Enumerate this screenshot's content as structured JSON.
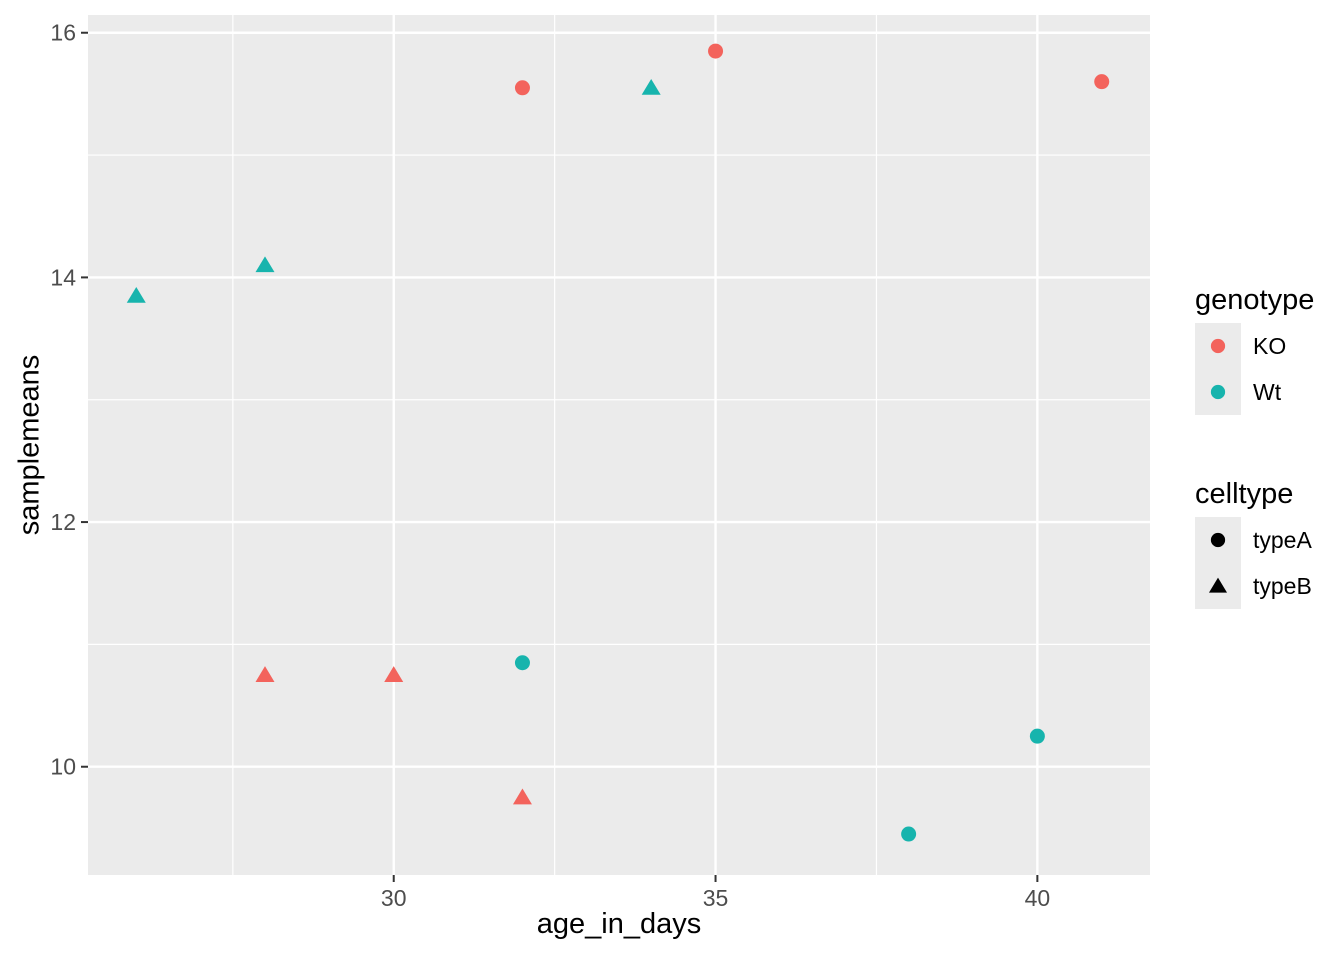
{
  "chart_data": {
    "type": "scatter",
    "title": "",
    "xlabel": "age_in_days",
    "ylabel": "samplemeans",
    "xlim": [
      25.25,
      41.75
    ],
    "ylim": [
      9.115,
      16.145
    ],
    "x_major_ticks": [
      30,
      35,
      40
    ],
    "x_minor_ticks": [
      27.5,
      32.5,
      37.5
    ],
    "y_major_ticks": [
      10,
      12,
      14,
      16
    ],
    "y_minor_ticks": [
      11,
      13,
      15
    ],
    "grid": true,
    "legend_position": "right",
    "panel_bg": "#EBEBEB",
    "grid_color": "#FFFFFF",
    "tick_mark_color": "#333333",
    "tick_label_color": "#4D4D4D",
    "colors": {
      "KO": "#F3635C",
      "Wt": "#17B4AD"
    },
    "shapes": {
      "typeA": "circle",
      "typeB": "triangle"
    },
    "points": [
      {
        "x": 26,
        "y": 13.85,
        "genotype": "Wt",
        "celltype": "typeB"
      },
      {
        "x": 28,
        "y": 14.1,
        "genotype": "Wt",
        "celltype": "typeB"
      },
      {
        "x": 28,
        "y": 10.75,
        "genotype": "KO",
        "celltype": "typeB"
      },
      {
        "x": 30,
        "y": 10.75,
        "genotype": "KO",
        "celltype": "typeB"
      },
      {
        "x": 32,
        "y": 15.55,
        "genotype": "KO",
        "celltype": "typeA"
      },
      {
        "x": 32,
        "y": 10.85,
        "genotype": "Wt",
        "celltype": "typeA"
      },
      {
        "x": 32,
        "y": 9.75,
        "genotype": "KO",
        "celltype": "typeB"
      },
      {
        "x": 34,
        "y": 15.55,
        "genotype": "Wt",
        "celltype": "typeB"
      },
      {
        "x": 35,
        "y": 15.85,
        "genotype": "KO",
        "celltype": "typeA"
      },
      {
        "x": 38,
        "y": 9.45,
        "genotype": "Wt",
        "celltype": "typeA"
      },
      {
        "x": 40,
        "y": 10.25,
        "genotype": "Wt",
        "celltype": "typeA"
      },
      {
        "x": 41,
        "y": 15.6,
        "genotype": "KO",
        "celltype": "typeA"
      }
    ],
    "legends": [
      {
        "title": "genotype",
        "entries": [
          {
            "label": "KO",
            "marker": "circle",
            "color": "#F3635C"
          },
          {
            "label": "Wt",
            "marker": "circle",
            "color": "#17B4AD"
          }
        ]
      },
      {
        "title": "celltype",
        "entries": [
          {
            "label": "typeA",
            "marker": "circle",
            "color": "#000000"
          },
          {
            "label": "typeB",
            "marker": "triangle",
            "color": "#000000"
          }
        ]
      }
    ]
  }
}
